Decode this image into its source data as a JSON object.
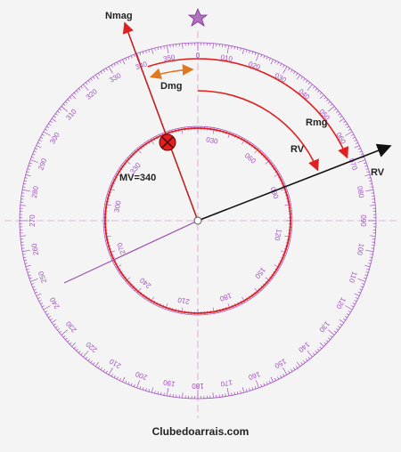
{
  "labels": {
    "nmag": "Nmag",
    "dmg": "Dmg",
    "rmg": "Rmg",
    "rv_arc": "RV",
    "rv_arrow": "RV",
    "mv": "MV=340"
  },
  "outer_rose": {
    "labels": [
      "0",
      "010",
      "020",
      "030",
      "040",
      "050",
      "060",
      "070",
      "080",
      "090",
      "100",
      "110",
      "120",
      "130",
      "140",
      "150",
      "160",
      "170",
      "180",
      "190",
      "200",
      "210",
      "220",
      "230",
      "240",
      "250",
      "260",
      "270",
      "280",
      "290",
      "300",
      "310",
      "320",
      "330",
      "340",
      "350"
    ]
  },
  "inner_rose": {
    "labels": [
      "030",
      "060",
      "090",
      "120",
      "150",
      "180",
      "210",
      "240",
      "270",
      "300",
      "330"
    ]
  },
  "footer": "Clubedoarrais.com"
}
